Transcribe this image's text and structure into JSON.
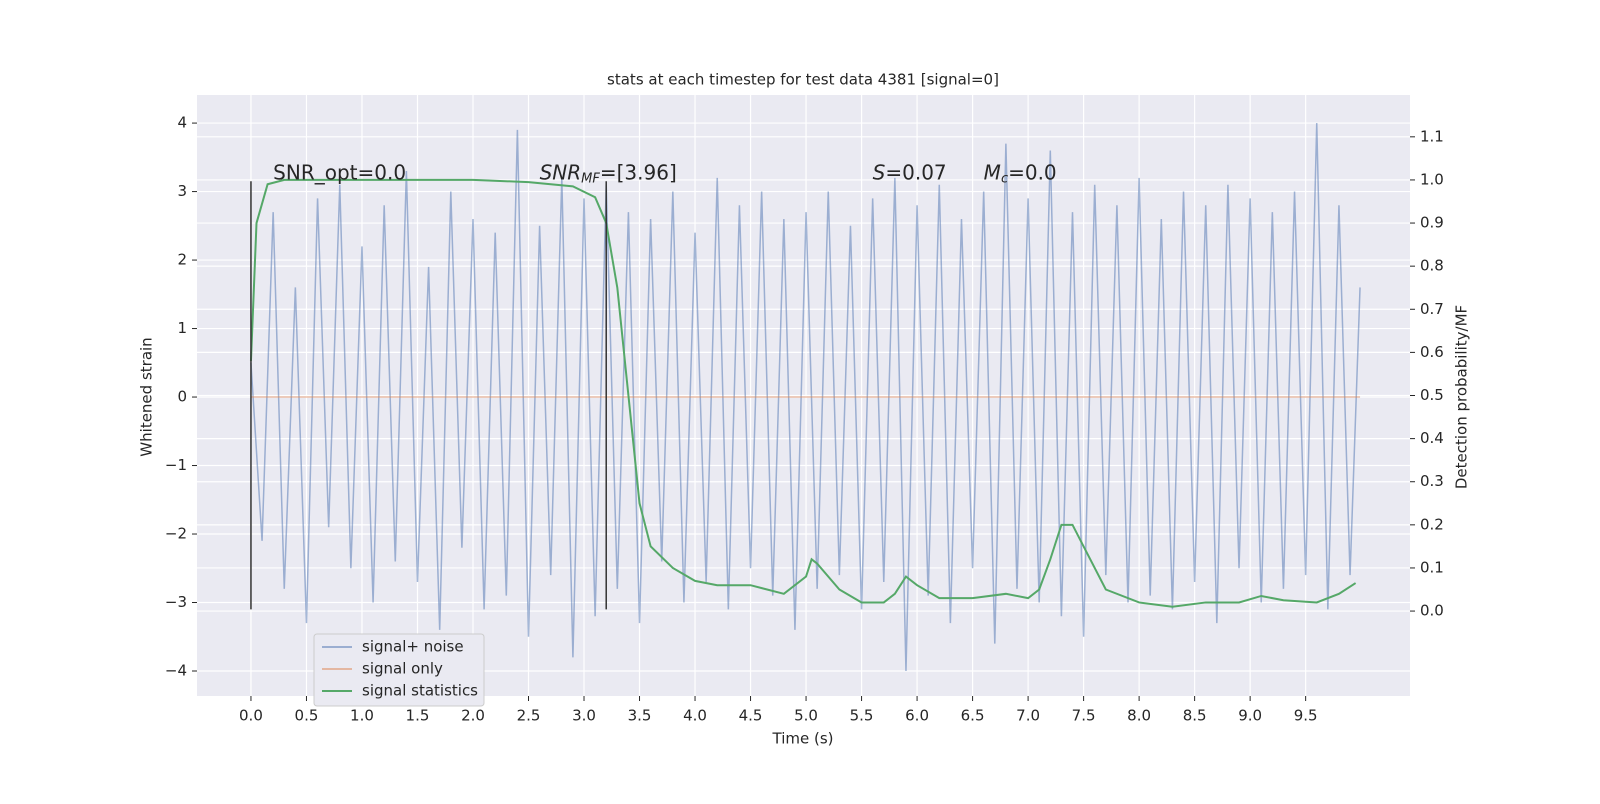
{
  "chart_data": {
    "type": "line",
    "title": "stats at each timestep for test data 4381 [signal=0]",
    "xlabel": "Time (s)",
    "ylabel": "Whitened strain",
    "y2label": "Detection probability/MF",
    "grid": true,
    "legend": "lower left",
    "xlim": [
      -0.486,
      10.44
    ],
    "ylim": [
      -4.365,
      4.41
    ],
    "y2lim": [
      -0.197,
      1.197
    ],
    "xticks": [
      {
        "value": 0,
        "label": "0.0"
      },
      0.5,
      {
        "value": 1,
        "label": "1.0"
      },
      1.5,
      {
        "value": 2,
        "label": "2.0"
      },
      2.5,
      {
        "value": 3,
        "label": "3.0"
      },
      3.5,
      {
        "value": 4,
        "label": "4.0"
      },
      4.5,
      {
        "value": 5,
        "label": "5.0"
      },
      5.5,
      {
        "value": 6,
        "label": "6.0"
      },
      6.5,
      {
        "value": 7,
        "label": "7.0"
      },
      7.5,
      {
        "value": 8,
        "label": "8.0"
      },
      8.5,
      {
        "value": 9,
        "label": "9.0"
      },
      9.5
    ],
    "yticks": [
      {
        "value": -4,
        "label": "−4"
      },
      {
        "value": -3,
        "label": "−3"
      },
      {
        "value": -2,
        "label": "−2"
      },
      {
        "value": -1,
        "label": "−1"
      },
      0,
      1,
      2,
      3,
      4
    ],
    "y2ticks": [
      {
        "value": 0,
        "label": "0.0"
      },
      0.1,
      0.2,
      0.3,
      0.4,
      0.5,
      0.6,
      0.7,
      0.8,
      0.9,
      {
        "value": 1,
        "label": "1.0"
      },
      1.1
    ],
    "vlines": {
      "x": [
        0,
        3.2
      ],
      "ymin": -3.1,
      "ymax": 3.15,
      "color": "#333333"
    },
    "annotations": [
      {
        "x": 0.2,
        "text": "SNR_opt=0.0"
      },
      {
        "x": 2.6,
        "text": "SNR",
        "sub": "MF",
        "rest": "=[3.96]",
        "italic": true
      },
      {
        "x": 5.6,
        "text": "S",
        "rest": "=0.07",
        "italic": true
      },
      {
        "x": 6.6,
        "text": "M",
        "sub": "c",
        "rest": "=0.0",
        "italic": true
      }
    ],
    "annotation_y": 3.15,
    "series": [
      {
        "name": "signal+ noise",
        "color": "#4c72b0",
        "opacity": 0.5,
        "x": [
          0,
          0.1,
          0.2,
          0.3,
          0.4,
          0.5,
          0.6,
          0.7,
          0.8,
          0.9,
          1,
          1.1,
          1.2,
          1.3,
          1.4,
          1.5,
          1.6,
          1.7,
          1.8,
          1.9,
          2,
          2.1,
          2.2,
          2.3,
          2.4,
          2.5,
          2.6,
          2.7,
          2.8,
          2.9,
          3,
          3.1,
          3.2,
          3.3,
          3.4,
          3.5,
          3.6,
          3.7,
          3.8,
          3.9,
          4,
          4.1,
          4.2,
          4.3,
          4.4,
          4.5,
          4.6,
          4.7,
          4.8,
          4.9,
          5,
          5.1,
          5.2,
          5.3,
          5.4,
          5.5,
          5.6,
          5.7,
          5.8,
          5.9,
          6,
          6.1,
          6.2,
          6.3,
          6.4,
          6.5,
          6.6,
          6.7,
          6.8,
          6.9,
          7,
          7.1,
          7.2,
          7.3,
          7.4,
          7.5,
          7.6,
          7.7,
          7.8,
          7.9,
          8,
          8.1,
          8.2,
          8.3,
          8.4,
          8.5,
          8.6,
          8.7,
          8.8,
          8.9,
          9,
          9.1,
          9.2,
          9.3,
          9.4,
          9.5,
          9.6,
          9.7,
          9.8,
          9.9,
          9.99
        ],
        "values": [
          0.5,
          -2.1,
          2.7,
          -2.8,
          1.6,
          -3.3,
          2.9,
          -1.9,
          3.1,
          -2.5,
          2.2,
          -3.0,
          2.8,
          -2.4,
          3.3,
          -2.7,
          1.9,
          -3.4,
          3.0,
          -2.2,
          2.6,
          -3.1,
          2.4,
          -2.9,
          3.9,
          -3.5,
          2.5,
          -2.6,
          3.2,
          -3.8,
          2.9,
          -3.2,
          3.1,
          -2.8,
          2.7,
          -3.3,
          2.6,
          -2.4,
          3.0,
          -3.0,
          2.4,
          -2.7,
          3.2,
          -3.1,
          2.8,
          -2.5,
          3.0,
          -2.9,
          2.6,
          -3.4,
          2.7,
          -2.8,
          3.0,
          -2.6,
          2.5,
          -3.1,
          2.9,
          -2.7,
          3.2,
          -4.0,
          2.8,
          -2.9,
          3.1,
          -3.3,
          2.6,
          -2.5,
          3.0,
          -3.6,
          3.7,
          -2.8,
          2.9,
          -3.0,
          3.6,
          -3.2,
          2.7,
          -3.5,
          3.1,
          -2.6,
          2.8,
          -3.0,
          3.2,
          -2.9,
          2.6,
          -3.1,
          3.0,
          -2.7,
          2.8,
          -3.3,
          3.1,
          -2.5,
          2.9,
          -3.0,
          2.7,
          -2.8,
          3.0,
          -2.6,
          4.0,
          -3.1,
          2.8,
          -2.6,
          1.6
        ]
      },
      {
        "name": "signal only",
        "color": "#dd8452",
        "opacity": 0.5,
        "x": [
          0,
          9.99
        ],
        "values": [
          0,
          0
        ]
      },
      {
        "name": "signal statistics",
        "color": "#55a868",
        "axis": "y2",
        "x": [
          0,
          0.05,
          0.15,
          0.3,
          1,
          2,
          2.5,
          2.9,
          3.1,
          3.2,
          3.3,
          3.4,
          3.5,
          3.6,
          3.8,
          4.0,
          4.2,
          4.5,
          4.8,
          5.0,
          5.05,
          5.1,
          5.3,
          5.5,
          5.7,
          5.8,
          5.9,
          6.0,
          6.2,
          6.5,
          6.8,
          7.0,
          7.1,
          7.2,
          7.3,
          7.4,
          7.5,
          7.7,
          8.0,
          8.3,
          8.6,
          8.9,
          9.1,
          9.3,
          9.6,
          9.8,
          9.95
        ],
        "values": [
          0.58,
          0.9,
          0.99,
          1.0,
          1.0,
          1.0,
          0.995,
          0.985,
          0.96,
          0.9,
          0.75,
          0.5,
          0.25,
          0.15,
          0.1,
          0.07,
          0.06,
          0.06,
          0.04,
          0.08,
          0.12,
          0.11,
          0.05,
          0.02,
          0.02,
          0.04,
          0.08,
          0.06,
          0.03,
          0.03,
          0.04,
          0.03,
          0.05,
          0.12,
          0.2,
          0.2,
          0.15,
          0.05,
          0.02,
          0.01,
          0.02,
          0.02,
          0.035,
          0.025,
          0.02,
          0.04,
          0.065
        ]
      }
    ]
  }
}
